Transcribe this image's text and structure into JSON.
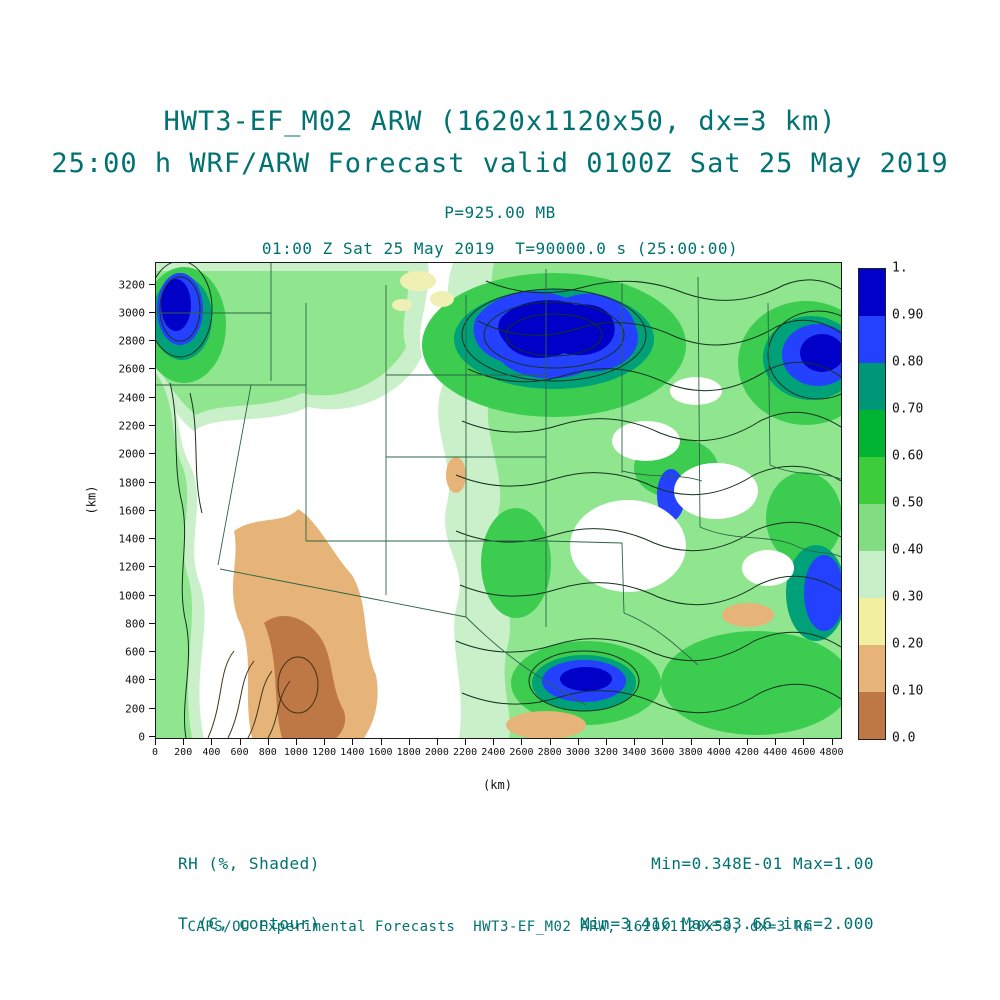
{
  "colors": {
    "heading_text": "#007272",
    "axis_text": "#111111",
    "frame": "#1a1a1a"
  },
  "chart_data": {
    "type": "heatmap",
    "title": "HWT3-EF_M02 ARW (1620x1120x50, dx=3 km)",
    "subtitle": "25:00 h WRF/ARW Forecast valid 0100Z Sat 25 May 2019",
    "level_label": "P=925.00 MB",
    "time_label": "01:00 Z Sat 25 May 2019  T=90000.0 s (25:00:00)",
    "xlabel": "(km)",
    "ylabel": "(km)",
    "grid": false,
    "legend_position": "right",
    "x_axis": {
      "ticks": [
        0,
        200,
        400,
        600,
        800,
        1000,
        1200,
        1400,
        1600,
        1800,
        2000,
        2200,
        2400,
        2600,
        2800,
        3000,
        3200,
        3400,
        3600,
        3800,
        4000,
        4200,
        4400,
        4600,
        4800
      ],
      "data_max": 4860
    },
    "y_axis": {
      "ticks": [
        0,
        200,
        400,
        600,
        800,
        1000,
        1200,
        1400,
        1600,
        1800,
        2000,
        2200,
        2400,
        2600,
        2800,
        3000,
        3200
      ],
      "data_max": 3360
    },
    "shaded_field": {
      "label": "RH (%, Shaded)",
      "stats_text": "Min=0.348E-01 Max=1.00",
      "min": 0.0348,
      "max": 1.0
    },
    "contour_field": {
      "label": "T (C, contour)",
      "stats_text": "Min=3.416 Max=33.66 inc=2.000",
      "min": 3.416,
      "max": 33.66,
      "interval": 2.0
    },
    "colorbar": {
      "tick_labels": [
        "1.",
        "0.90",
        "0.80",
        "0.70",
        "0.60",
        "0.50",
        "0.40",
        "0.30",
        "0.20",
        "0.10",
        "0.0"
      ],
      "colors_top_to_bottom": [
        "#0000c8",
        "#2341ff",
        "#009678",
        "#00b432",
        "#3ccc3c",
        "#82dc82",
        "#c8f0c8",
        "#f0f0a0",
        "#e6b478",
        "#be7846"
      ]
    }
  },
  "footer": {
    "credit": "CAPS/OU Experimental Forecasts  HWT3-EF_M02 ARW, 1620x1120x50, dx=3 km"
  }
}
